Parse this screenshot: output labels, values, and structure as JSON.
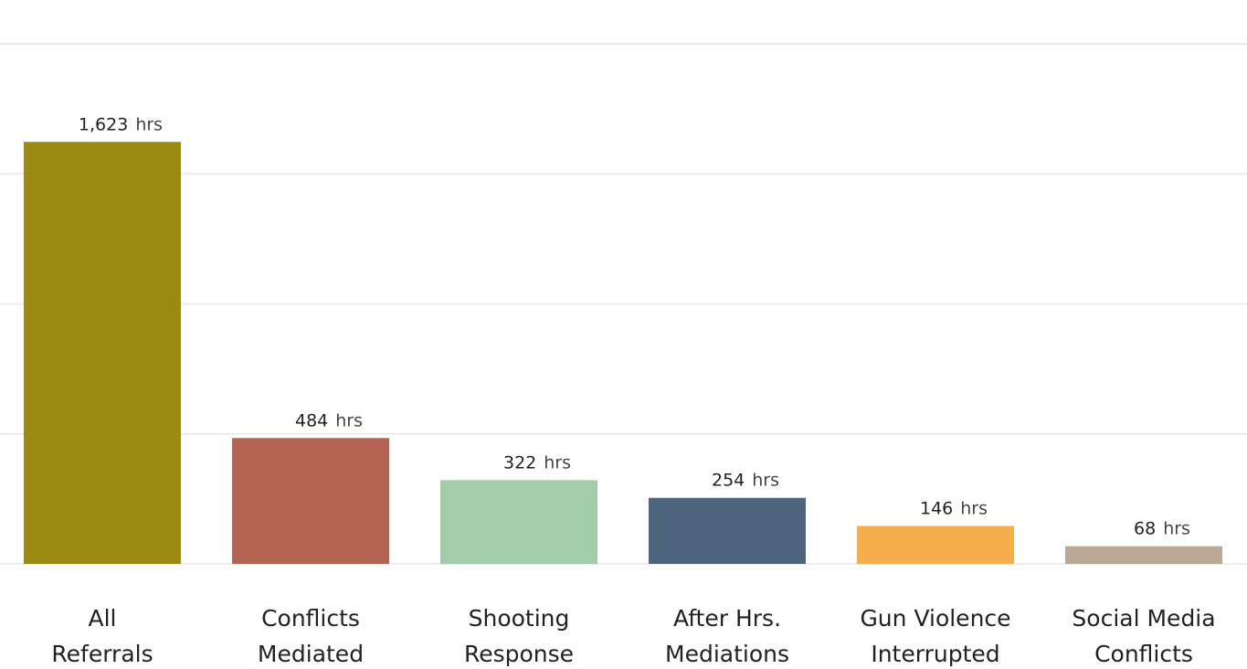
{
  "chart_data": {
    "type": "bar",
    "categories": [
      [
        "All",
        "Referrals"
      ],
      [
        "Conflicts",
        "Mediated"
      ],
      [
        "Shooting",
        "Response"
      ],
      [
        "After Hrs.",
        "Mediations"
      ],
      [
        "Gun Violence",
        "Interrupted"
      ],
      [
        "Social Media",
        "Conflicts"
      ]
    ],
    "values": [
      1623,
      484,
      322,
      254,
      146,
      68
    ],
    "value_labels": [
      "1,623",
      "484",
      "322",
      "254",
      "146",
      "68"
    ],
    "value_suffix": "hrs",
    "colors": [
      "#9c8b12",
      "#b46252",
      "#a3cca9",
      "#4d667e",
      "#f6ad4c",
      "#b9a995"
    ],
    "ylim": [
      0,
      2000
    ],
    "yticks": [
      0,
      500,
      1000,
      1500,
      2000
    ],
    "grid": true
  }
}
